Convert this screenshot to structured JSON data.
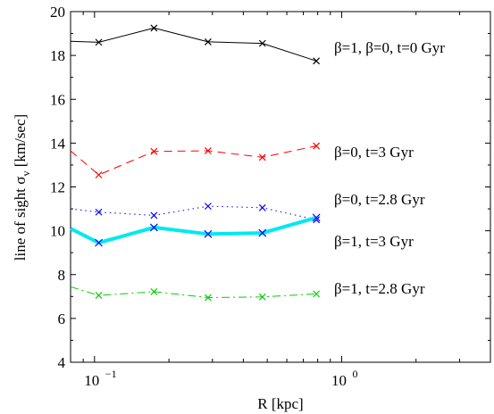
{
  "chart_data": {
    "type": "line",
    "xscale": "log",
    "xlim": [
      0.08,
      4.0
    ],
    "ylim": [
      4,
      20
    ],
    "xlabel": "R [kpc]",
    "ylabel": {
      "text": "line of sight σ",
      "subscript": "v",
      "unit": "[km/sec]"
    },
    "xticks": [
      {
        "value": 0.1,
        "base": "10",
        "exp": "−1"
      },
      {
        "value": 1.0,
        "base": "10",
        "exp": "0"
      }
    ],
    "yticks": [
      4,
      6,
      8,
      10,
      12,
      14,
      16,
      18,
      20
    ],
    "grid": false,
    "series": [
      {
        "name": "β=1, β=0, t=0 Gyr",
        "color": "#000000",
        "dash": "solid",
        "width": 1,
        "marker": "x",
        "x": [
          0.08,
          0.104,
          0.174,
          0.288,
          0.478,
          0.79
        ],
        "y": [
          18.65,
          18.6,
          19.25,
          18.62,
          18.55,
          17.75
        ],
        "marker_points": [
          1,
          2,
          3,
          4,
          5
        ]
      },
      {
        "name": "β=0, t=3 Gyr",
        "color": "#ff0000",
        "dash": "dashed",
        "width": 1,
        "marker": "x",
        "x": [
          0.08,
          0.104,
          0.174,
          0.288,
          0.478,
          0.79
        ],
        "y": [
          13.65,
          12.55,
          13.62,
          13.65,
          13.35,
          13.87
        ],
        "marker_points": [
          1,
          2,
          3,
          4,
          5
        ]
      },
      {
        "name": "β=0, t=2.8 Gyr",
        "color": "#0000ff",
        "dash": "dotted",
        "width": 1,
        "marker": "x",
        "x": [
          0.08,
          0.104,
          0.174,
          0.288,
          0.478,
          0.79
        ],
        "y": [
          11.0,
          10.85,
          10.7,
          11.12,
          11.05,
          10.5
        ],
        "marker_points": [
          1,
          2,
          3,
          4,
          5
        ]
      },
      {
        "name": "β=1, t=3 Gyr",
        "color": "#00e8f0",
        "dash": "solid",
        "width": 4,
        "marker": "x",
        "x": [
          0.08,
          0.104,
          0.174,
          0.288,
          0.478,
          0.79
        ],
        "y": [
          10.1,
          9.45,
          10.15,
          9.85,
          9.9,
          10.6
        ],
        "marker_points": [
          1,
          2,
          3,
          4,
          5
        ]
      },
      {
        "name": "β=1, t=2.8 Gyr",
        "color": "#00d000",
        "dash": "dashdot",
        "width": 1,
        "marker": "x",
        "x": [
          0.08,
          0.104,
          0.174,
          0.288,
          0.478,
          0.79
        ],
        "y": [
          7.45,
          7.05,
          7.22,
          6.95,
          6.98,
          7.12
        ],
        "marker_points": [
          1,
          2,
          3,
          4,
          5
        ]
      }
    ]
  }
}
